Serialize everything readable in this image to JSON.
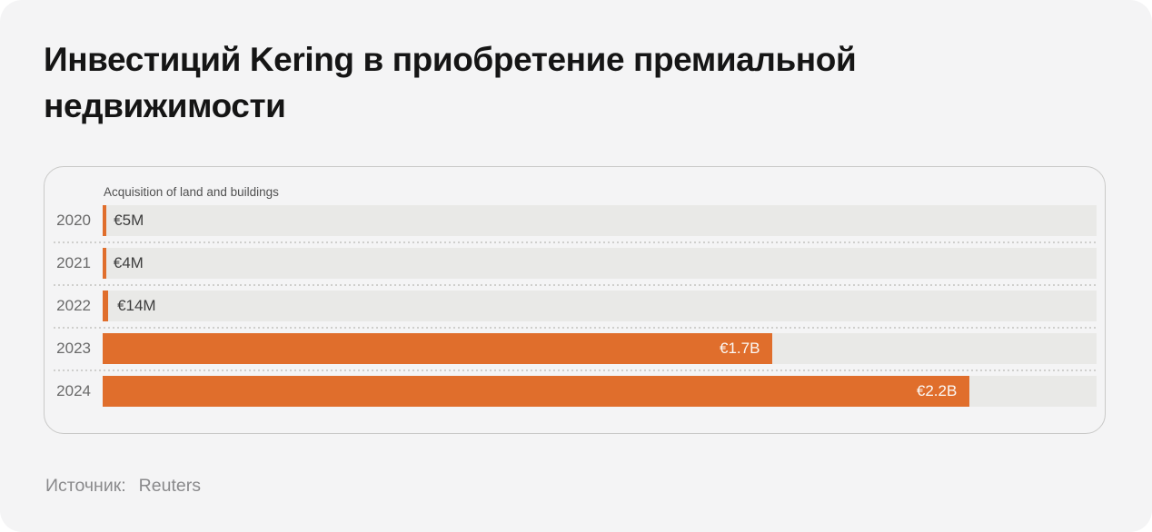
{
  "title": "Инвестиций Kering в приобретение премиальной недвижимости",
  "source": {
    "label": "Источник:",
    "value": "Reuters"
  },
  "chart_data": {
    "type": "bar",
    "orientation": "horizontal",
    "title": "Acquisition of land and buildings",
    "categories": [
      "2020",
      "2021",
      "2022",
      "2023",
      "2024"
    ],
    "values": [
      5,
      4,
      14,
      1700,
      2200
    ],
    "value_labels": [
      "€5M",
      "€4M",
      "€14M",
      "€1.7B",
      "€2.2B"
    ],
    "unit": "EUR millions",
    "xlim": [
      0,
      2522
    ],
    "legend": "none",
    "grid": "dotted row separators",
    "colors": {
      "bar": "#E06E2C",
      "track": "#E9E9E7",
      "label_inside": "#FBF9F6",
      "label_outside": "#3D3D3D"
    }
  }
}
